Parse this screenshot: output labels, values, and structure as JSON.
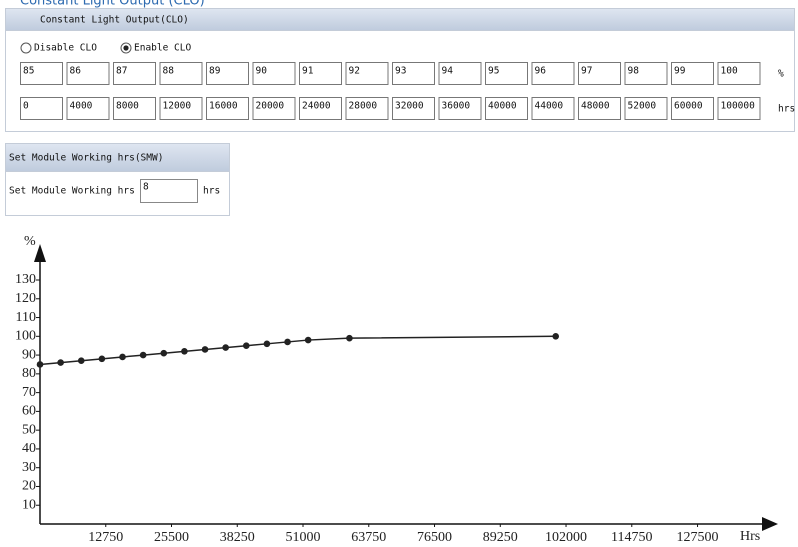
{
  "header_cut": "Constant Light Output (CLO)",
  "clo": {
    "title": "Constant Light Output(CLO)",
    "options": [
      "Disable CLO",
      "Enable CLO"
    ],
    "selected": 1,
    "percent_row": {
      "values": [
        "85",
        "86",
        "87",
        "88",
        "89",
        "90",
        "91",
        "92",
        "93",
        "94",
        "95",
        "96",
        "97",
        "98",
        "99",
        "100"
      ],
      "unit": "%"
    },
    "hours_row": {
      "values": [
        "0",
        "4000",
        "8000",
        "12000",
        "16000",
        "20000",
        "24000",
        "28000",
        "32000",
        "36000",
        "40000",
        "44000",
        "48000",
        "52000",
        "60000",
        "100000"
      ],
      "unit": "hrs"
    }
  },
  "smw": {
    "title": "Set Module Working hrs(SMW)",
    "label": "Set Module Working hrs",
    "value": "8",
    "unit": "hrs"
  },
  "chart_data": {
    "type": "line",
    "y_label": "%",
    "x_label": "Hrs",
    "x": [
      0,
      4000,
      8000,
      12000,
      16000,
      20000,
      24000,
      28000,
      32000,
      36000,
      40000,
      44000,
      48000,
      52000,
      60000,
      100000
    ],
    "series": [
      {
        "color": "#222222",
        "values": [
          85,
          86,
          87,
          88,
          89,
          90,
          91,
          92,
          93,
          94,
          95,
          96,
          97,
          98,
          99,
          100
        ]
      }
    ],
    "xlim": [
      0,
      140000
    ],
    "ylim": [
      0,
      130
    ],
    "xticks": [
      12750,
      25500,
      38250,
      51000,
      63750,
      76500,
      89250,
      102000,
      114750,
      127500
    ],
    "yticks": [
      10,
      20,
      30,
      40,
      50,
      60,
      70,
      80,
      90,
      100,
      110,
      120,
      130
    ]
  }
}
